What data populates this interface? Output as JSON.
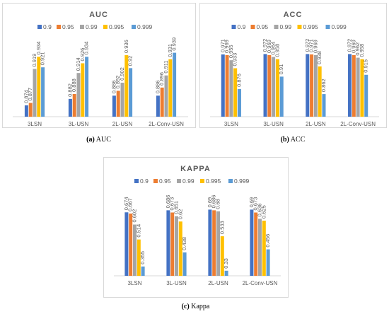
{
  "colors": {
    "series": [
      "#4472C4",
      "#ED7D31",
      "#A5A5A5",
      "#FFC000",
      "#5B9BD5"
    ],
    "frame": "#D9D9D9",
    "text": "#595959",
    "grid": "#D9D9D9"
  },
  "chart_data": [
    {
      "type": "bar",
      "title": "AUC",
      "categories": [
        "3LSN",
        "3L-USN",
        "2L-USN",
        "2L-Conv-USN"
      ],
      "series": [
        {
          "name": "0.9",
          "values": [
            0.874,
            0.882,
            0.886,
            0.886
          ]
        },
        {
          "name": "0.95",
          "values": [
            0.877,
            0.888,
            0.892,
            0.896
          ]
        },
        {
          "name": "0.99",
          "values": [
            0.919,
            0.914,
            0.902,
            0.911
          ]
        },
        {
          "name": "0.995",
          "values": [
            0.934,
            0.926,
            0.936,
            0.931
          ]
        },
        {
          "name": "0.999",
          "values": [
            0.921,
            0.934,
            0.92,
            0.939
          ]
        }
      ],
      "ylim": [
        0.86,
        0.95
      ],
      "legend": "top",
      "grid": false,
      "caption_label": "(a)",
      "caption_text": "AUC"
    },
    {
      "type": "bar",
      "title": "ACC",
      "categories": [
        "3LSN",
        "3L-USN",
        "2L-USN",
        "2L-Conv-USN"
      ],
      "series": [
        {
          "name": "0.9",
          "values": [
            0.971,
            0.972,
            0.972,
            0.972
          ]
        },
        {
          "name": "0.95",
          "values": [
            0.969,
            0.969,
            0.971,
            0.969
          ]
        },
        {
          "name": "0.99",
          "values": [
            0.955,
            0.964,
            0.969,
            0.962
          ]
        },
        {
          "name": "0.995",
          "values": [
            0.933,
            0.958,
            0.938,
            0.958
          ]
        },
        {
          "name": "0.999",
          "values": [
            0.876,
            0.91,
            0.862,
            0.915
          ]
        }
      ],
      "ylim": [
        0.8,
        1.0
      ],
      "legend": "top",
      "grid": false,
      "caption_label": "(b)",
      "caption_text": "ACC"
    },
    {
      "type": "bar",
      "title": "KAPPA",
      "categories": [
        "3LSN",
        "3L-USN",
        "2L-USN",
        "2L-Conv-USN"
      ],
      "series": [
        {
          "name": "0.9",
          "values": [
            0.674,
            0.686,
            0.69,
            0.69
          ]
        },
        {
          "name": "0.95",
          "values": [
            0.667,
            0.673,
            0.686,
            0.673
          ]
        },
        {
          "name": "0.99",
          "values": [
            0.602,
            0.651,
            0.68,
            0.636
          ]
        },
        {
          "name": "0.995",
          "values": [
            0.514,
            0.62,
            0.533,
            0.625
          ]
        },
        {
          "name": "0.999",
          "values": [
            0.355,
            0.438,
            0.33,
            0.456
          ]
        }
      ],
      "ylim": [
        0.3,
        0.75
      ],
      "legend": "top",
      "grid": false,
      "caption_label": "(c)",
      "caption_text": "Kappa"
    }
  ]
}
